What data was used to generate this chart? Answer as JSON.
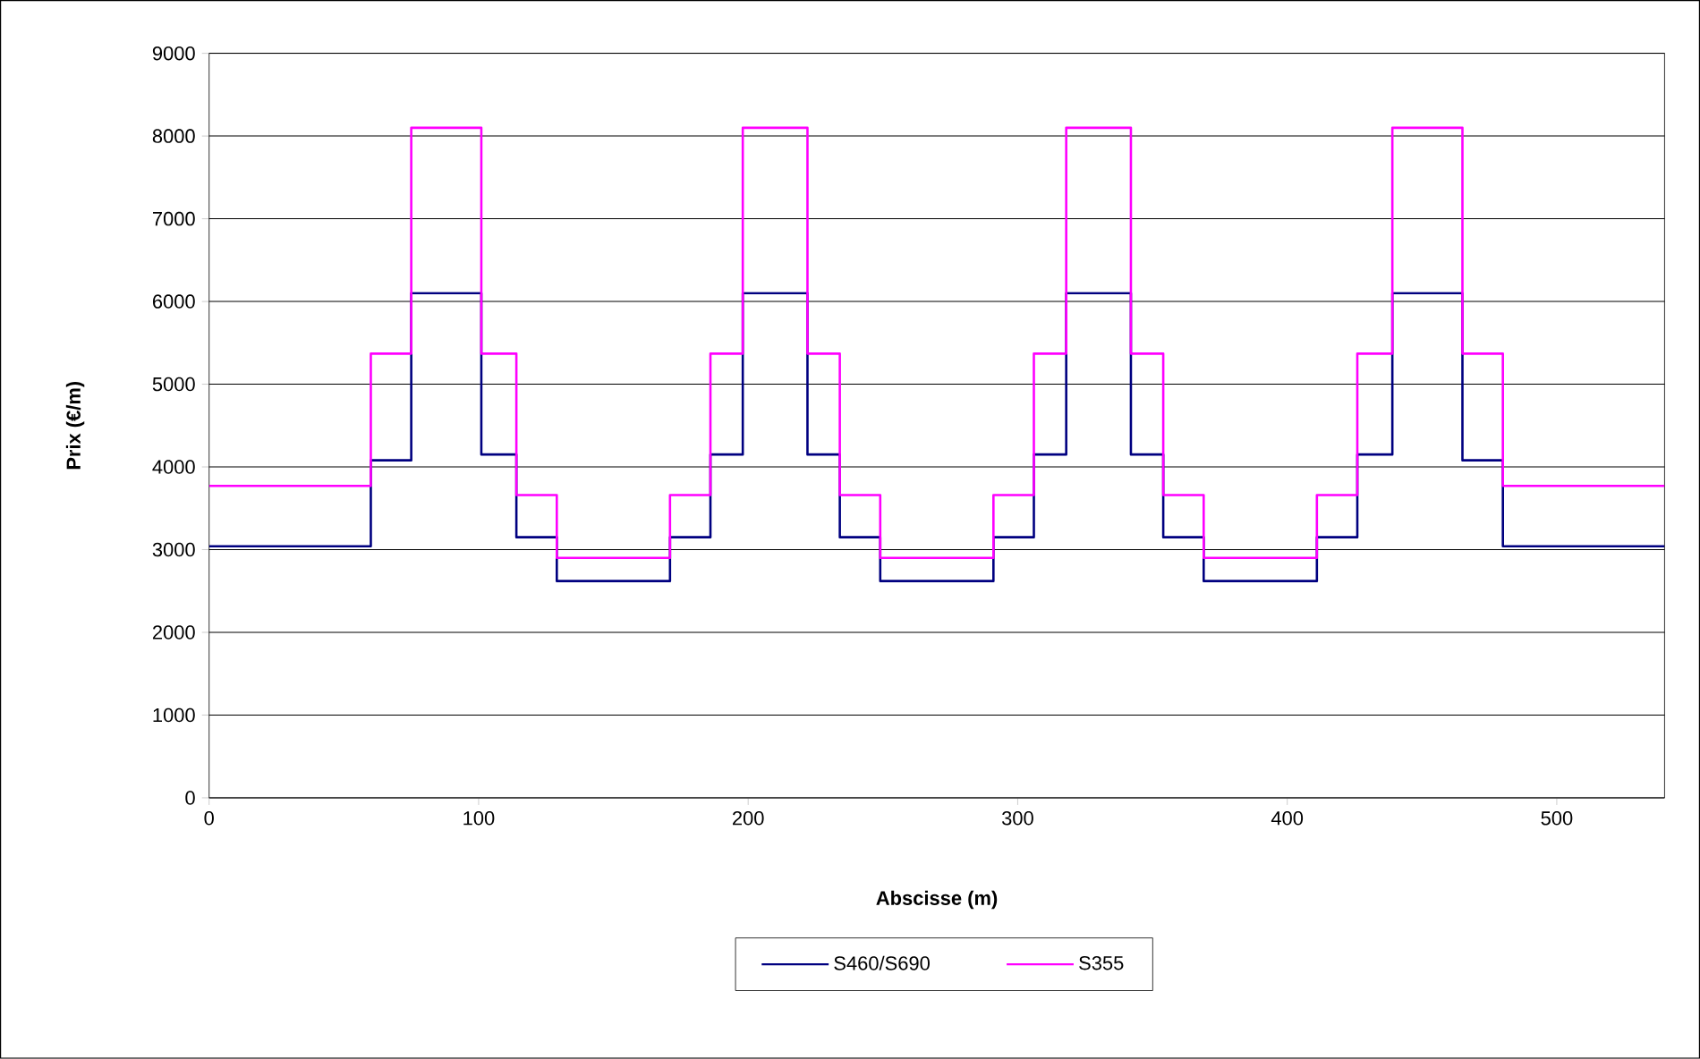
{
  "chart_data": {
    "type": "step",
    "xlabel": "Abscisse (m)",
    "ylabel": "Prix (€/m)",
    "x": [
      0,
      60,
      75,
      101,
      114,
      129,
      171,
      186,
      198,
      222,
      234,
      249,
      291,
      306,
      318,
      342,
      354,
      369,
      411,
      426,
      439,
      465,
      480,
      540
    ],
    "series": [
      {
        "name": "S460/S690",
        "color": "#000080",
        "values": [
          3040,
          4080,
          6100,
          4150,
          3150,
          2620,
          3150,
          4150,
          6100,
          4150,
          3150,
          2620,
          3150,
          4150,
          6100,
          4150,
          3150,
          2620,
          3150,
          4150,
          6100,
          4080,
          3040,
          3040
        ]
      },
      {
        "name": "S355",
        "color": "#ff00ff",
        "values": [
          3770,
          5370,
          8100,
          5370,
          3660,
          2900,
          3660,
          5370,
          8100,
          5370,
          3660,
          2900,
          3660,
          5370,
          8100,
          5370,
          3660,
          2900,
          3660,
          5370,
          8100,
          5370,
          3770,
          3770
        ]
      }
    ],
    "xlim": [
      0,
      540
    ],
    "xticks": [
      0,
      100,
      200,
      300,
      400,
      500
    ],
    "ylim": [
      0,
      9000
    ],
    "yticks": [
      0,
      1000,
      2000,
      3000,
      4000,
      5000,
      6000,
      7000,
      8000,
      9000
    ],
    "grid": "y",
    "legend": "bottom",
    "line_style": "solid",
    "marker": "none"
  }
}
